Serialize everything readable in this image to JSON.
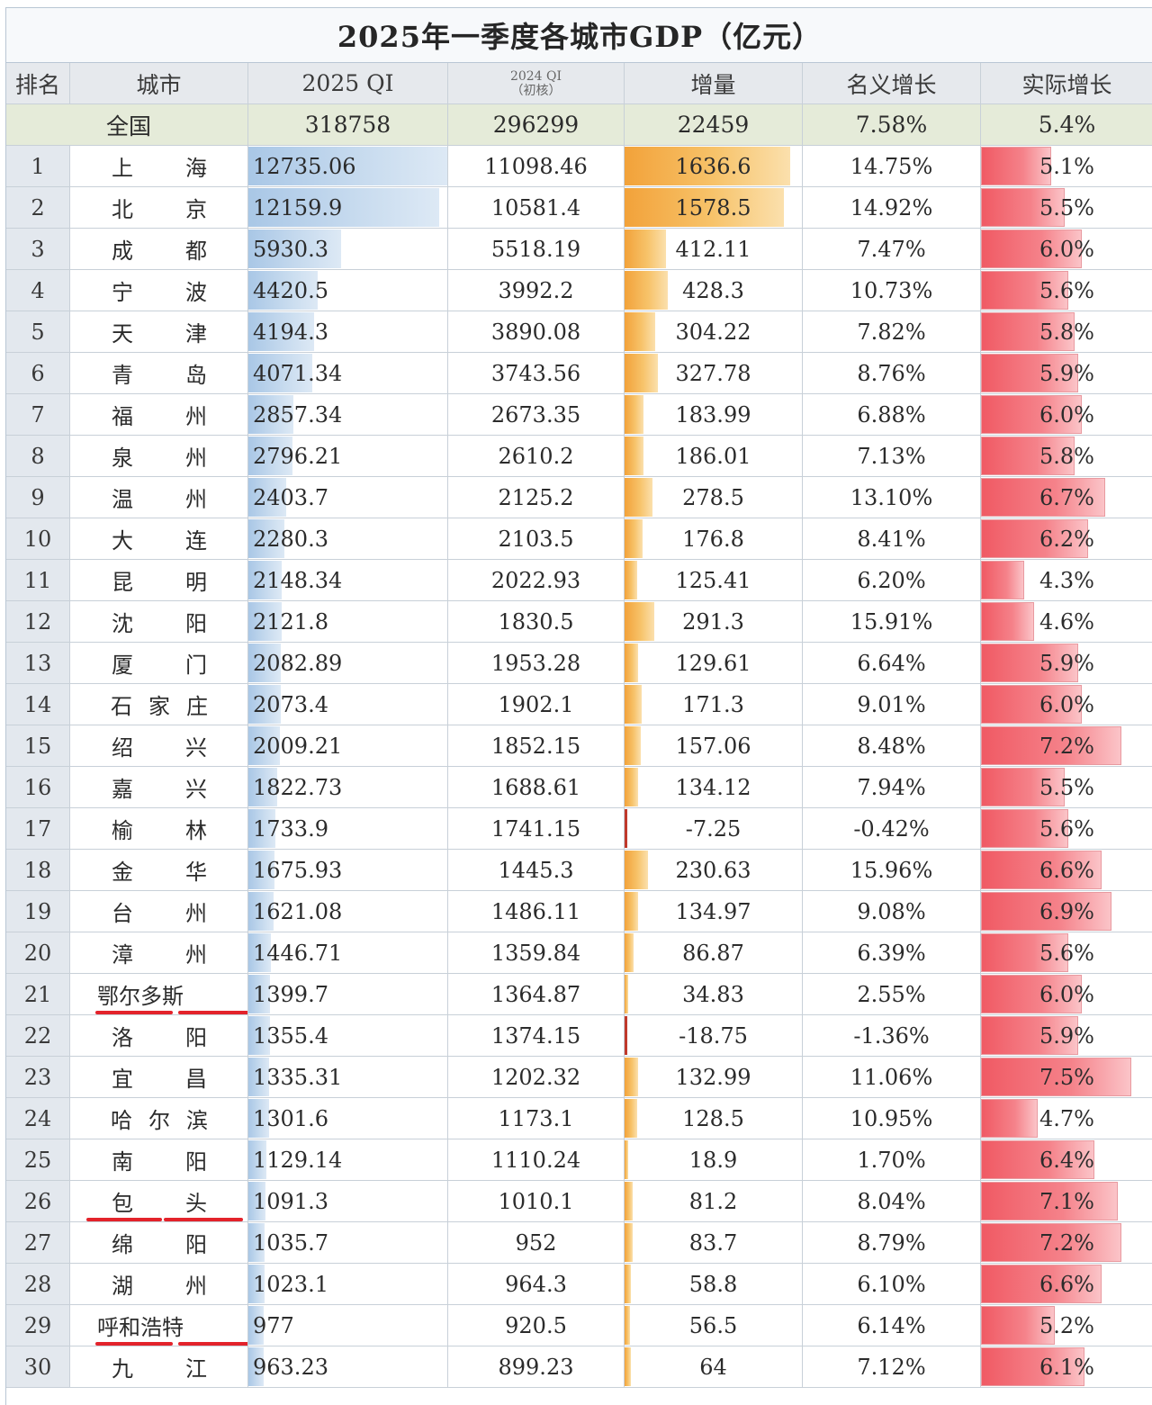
{
  "title": "2025年一季度各城市GDP（亿元）",
  "headers": {
    "rank": "排名",
    "city": "城市",
    "q1_2025": "2025 QI",
    "q1_2024_line1": "2024 QI",
    "q1_2024_line2": "（初核）",
    "increase": "增量",
    "nominal": "名义增长",
    "real": "实际增长"
  },
  "national": {
    "label": "全国",
    "q1_2025": "318758",
    "q1_2024": "296299",
    "increase": "22459",
    "nominal": "7.58%",
    "real": "5.4%"
  },
  "rows": [
    {
      "rank": "1",
      "city": "上海",
      "q1_2025": "12735.06",
      "q1_2024": "11098.46",
      "increase": "1636.6",
      "nominal": "14.75%",
      "real": "5.1%"
    },
    {
      "rank": "2",
      "city": "北京",
      "q1_2025": "12159.9",
      "q1_2024": "10581.4",
      "increase": "1578.5",
      "nominal": "14.92%",
      "real": "5.5%"
    },
    {
      "rank": "3",
      "city": "成都",
      "q1_2025": "5930.3",
      "q1_2024": "5518.19",
      "increase": "412.11",
      "nominal": "7.47%",
      "real": "6.0%"
    },
    {
      "rank": "4",
      "city": "宁波",
      "q1_2025": "4420.5",
      "q1_2024": "3992.2",
      "increase": "428.3",
      "nominal": "10.73%",
      "real": "5.6%"
    },
    {
      "rank": "5",
      "city": "天津",
      "q1_2025": "4194.3",
      "q1_2024": "3890.08",
      "increase": "304.22",
      "nominal": "7.82%",
      "real": "5.8%"
    },
    {
      "rank": "6",
      "city": "青岛",
      "q1_2025": "4071.34",
      "q1_2024": "3743.56",
      "increase": "327.78",
      "nominal": "8.76%",
      "real": "5.9%"
    },
    {
      "rank": "7",
      "city": "福州",
      "q1_2025": "2857.34",
      "q1_2024": "2673.35",
      "increase": "183.99",
      "nominal": "6.88%",
      "real": "6.0%"
    },
    {
      "rank": "8",
      "city": "泉州",
      "q1_2025": "2796.21",
      "q1_2024": "2610.2",
      "increase": "186.01",
      "nominal": "7.13%",
      "real": "5.8%"
    },
    {
      "rank": "9",
      "city": "温州",
      "q1_2025": "2403.7",
      "q1_2024": "2125.2",
      "increase": "278.5",
      "nominal": "13.10%",
      "real": "6.7%"
    },
    {
      "rank": "10",
      "city": "大连",
      "q1_2025": "2280.3",
      "q1_2024": "2103.5",
      "increase": "176.8",
      "nominal": "8.41%",
      "real": "6.2%"
    },
    {
      "rank": "11",
      "city": "昆明",
      "q1_2025": "2148.34",
      "q1_2024": "2022.93",
      "increase": "125.41",
      "nominal": "6.20%",
      "real": "4.3%"
    },
    {
      "rank": "12",
      "city": "沈阳",
      "q1_2025": "2121.8",
      "q1_2024": "1830.5",
      "increase": "291.3",
      "nominal": "15.91%",
      "real": "4.6%"
    },
    {
      "rank": "13",
      "city": "厦门",
      "q1_2025": "2082.89",
      "q1_2024": "1953.28",
      "increase": "129.61",
      "nominal": "6.64%",
      "real": "5.9%"
    },
    {
      "rank": "14",
      "city": "石家庄",
      "q1_2025": "2073.4",
      "q1_2024": "1902.1",
      "increase": "171.3",
      "nominal": "9.01%",
      "real": "6.0%"
    },
    {
      "rank": "15",
      "city": "绍兴",
      "q1_2025": "2009.21",
      "q1_2024": "1852.15",
      "increase": "157.06",
      "nominal": "8.48%",
      "real": "7.2%"
    },
    {
      "rank": "16",
      "city": "嘉兴",
      "q1_2025": "1822.73",
      "q1_2024": "1688.61",
      "increase": "134.12",
      "nominal": "7.94%",
      "real": "5.5%"
    },
    {
      "rank": "17",
      "city": "榆林",
      "q1_2025": "1733.9",
      "q1_2024": "1741.15",
      "increase": "-7.25",
      "nominal": "-0.42%",
      "real": "5.6%"
    },
    {
      "rank": "18",
      "city": "金华",
      "q1_2025": "1675.93",
      "q1_2024": "1445.3",
      "increase": "230.63",
      "nominal": "15.96%",
      "real": "6.6%"
    },
    {
      "rank": "19",
      "city": "台州",
      "q1_2025": "1621.08",
      "q1_2024": "1486.11",
      "increase": "134.97",
      "nominal": "9.08%",
      "real": "6.9%"
    },
    {
      "rank": "20",
      "city": "漳州",
      "q1_2025": "1446.71",
      "q1_2024": "1359.84",
      "increase": "86.87",
      "nominal": "6.39%",
      "real": "5.6%"
    },
    {
      "rank": "21",
      "city": "鄂尔多斯",
      "q1_2025": "1399.7",
      "q1_2024": "1364.87",
      "increase": "34.83",
      "nominal": "2.55%",
      "real": "6.0%"
    },
    {
      "rank": "22",
      "city": "洛阳",
      "q1_2025": "1355.4",
      "q1_2024": "1374.15",
      "increase": "-18.75",
      "nominal": "-1.36%",
      "real": "5.9%"
    },
    {
      "rank": "23",
      "city": "宜昌",
      "q1_2025": "1335.31",
      "q1_2024": "1202.32",
      "increase": "132.99",
      "nominal": "11.06%",
      "real": "7.5%"
    },
    {
      "rank": "24",
      "city": "哈尔滨",
      "q1_2025": "1301.6",
      "q1_2024": "1173.1",
      "increase": "128.5",
      "nominal": "10.95%",
      "real": "4.7%"
    },
    {
      "rank": "25",
      "city": "南阳",
      "q1_2025": "1129.14",
      "q1_2024": "1110.24",
      "increase": "18.9",
      "nominal": "1.70%",
      "real": "6.4%"
    },
    {
      "rank": "26",
      "city": "包头",
      "q1_2025": "1091.3",
      "q1_2024": "1010.1",
      "increase": "81.2",
      "nominal": "8.04%",
      "real": "7.1%"
    },
    {
      "rank": "27",
      "city": "绵阳",
      "q1_2025": "1035.7",
      "q1_2024": "952",
      "increase": "83.7",
      "nominal": "8.79%",
      "real": "7.2%"
    },
    {
      "rank": "28",
      "city": "湖州",
      "q1_2025": "1023.1",
      "q1_2024": "964.3",
      "increase": "58.8",
      "nominal": "6.10%",
      "real": "6.6%"
    },
    {
      "rank": "29",
      "city": "呼和浩特",
      "q1_2025": "977",
      "q1_2024": "920.5",
      "increase": "56.5",
      "nominal": "6.14%",
      "real": "5.2%"
    },
    {
      "rank": "30",
      "city": "九江",
      "q1_2025": "963.23",
      "q1_2024": "899.23",
      "increase": "64",
      "nominal": "7.12%",
      "real": "6.1%"
    }
  ],
  "highlighted_cities": [
    "鄂尔多斯",
    "包头",
    "呼和浩特"
  ],
  "colors": {
    "gdp_bar": "#a9c7e6",
    "increase_bar": "#f2a23a",
    "real_growth_bar": "#f05a64",
    "underline": "#e3232b",
    "header_bg": "#e6e9ed",
    "national_bg": "#e5ebd9"
  }
}
